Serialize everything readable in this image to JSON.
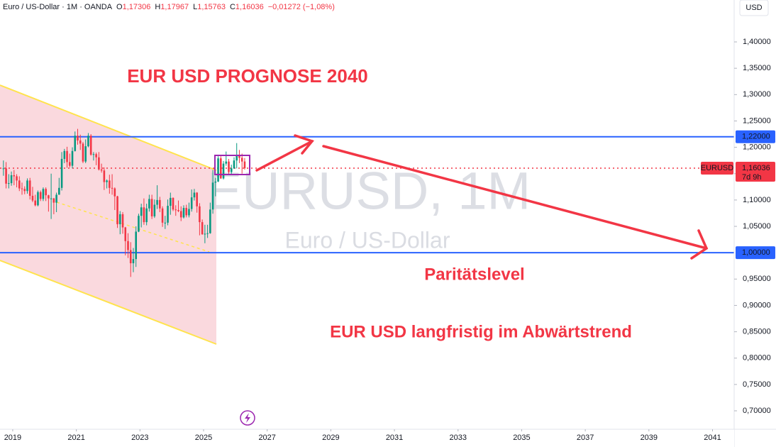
{
  "header": {
    "symbol": "Euro / US-Dollar · 1M · OANDA",
    "ohlc": [
      {
        "key": "O",
        "value": "1,17306"
      },
      {
        "key": "H",
        "value": "1,17967"
      },
      {
        "key": "L",
        "value": "1,15763"
      },
      {
        "key": "C",
        "value": "1,16036"
      }
    ],
    "change": "−0,01272 (−1,08%)",
    "currency": "USD"
  },
  "chart_data": {
    "type": "candlestick",
    "title": "EUR USD PROGNOSE 2040",
    "watermark": "EURUSD, 1M",
    "watermark_subtitle": "Euro / US-Dollar",
    "annotations": [
      "Paritätslevel",
      "EUR USD langfristig im Abwärtstrend"
    ],
    "up_color": "#089981",
    "down_color": "#f23645",
    "x": [
      "2018-09",
      "2018-10",
      "2018-11",
      "2018-12",
      "2019-01",
      "2019-02",
      "2019-03",
      "2019-04",
      "2019-05",
      "2019-06",
      "2019-07",
      "2019-08",
      "2019-09",
      "2019-10",
      "2019-11",
      "2019-12",
      "2020-01",
      "2020-02",
      "2020-03",
      "2020-04",
      "2020-05",
      "2020-06",
      "2020-07",
      "2020-08",
      "2020-09",
      "2020-10",
      "2020-11",
      "2020-12",
      "2021-01",
      "2021-02",
      "2021-03",
      "2021-04",
      "2021-05",
      "2021-06",
      "2021-07",
      "2021-08",
      "2021-09",
      "2021-10",
      "2021-11",
      "2021-12",
      "2022-01",
      "2022-02",
      "2022-03",
      "2022-04",
      "2022-05",
      "2022-06",
      "2022-07",
      "2022-08",
      "2022-09",
      "2022-10",
      "2022-11",
      "2022-12",
      "2023-01",
      "2023-02",
      "2023-03",
      "2023-04",
      "2023-05",
      "2023-06",
      "2023-07",
      "2023-08",
      "2023-09",
      "2023-10",
      "2023-11",
      "2023-12",
      "2024-01",
      "2024-02",
      "2024-03",
      "2024-04",
      "2024-05",
      "2024-06",
      "2024-07",
      "2024-08",
      "2024-09",
      "2024-10",
      "2024-11",
      "2024-12",
      "2025-01",
      "2025-02",
      "2025-03",
      "2025-04",
      "2025-05",
      "2025-06",
      "2025-07",
      "2025-08",
      "2025-09",
      "2025-10",
      "2025-11",
      "2025-12",
      "2026-01",
      "2026-02",
      "2026-03",
      "2026-04"
    ],
    "candles": [
      [
        1.16,
        1.175,
        1.146,
        1.16
      ],
      [
        1.16,
        1.172,
        1.122,
        1.131
      ],
      [
        1.131,
        1.149,
        1.122,
        1.132
      ],
      [
        1.132,
        1.154,
        1.127,
        1.147
      ],
      [
        1.147,
        1.157,
        1.128,
        1.145
      ],
      [
        1.145,
        1.149,
        1.124,
        1.137
      ],
      [
        1.137,
        1.145,
        1.117,
        1.122
      ],
      [
        1.122,
        1.133,
        1.11,
        1.121
      ],
      [
        1.121,
        1.126,
        1.111,
        1.117
      ],
      [
        1.117,
        1.141,
        1.112,
        1.137
      ],
      [
        1.137,
        1.142,
        1.101,
        1.108
      ],
      [
        1.108,
        1.125,
        1.096,
        1.099
      ],
      [
        1.099,
        1.11,
        1.088,
        1.09
      ],
      [
        1.09,
        1.118,
        1.088,
        1.115
      ],
      [
        1.115,
        1.118,
        1.098,
        1.102
      ],
      [
        1.102,
        1.124,
        1.098,
        1.121
      ],
      [
        1.121,
        1.124,
        1.098,
        1.109
      ],
      [
        1.109,
        1.11,
        1.078,
        1.103
      ],
      [
        1.103,
        1.15,
        1.064,
        1.103
      ],
      [
        1.103,
        1.104,
        1.073,
        1.095
      ],
      [
        1.095,
        1.114,
        1.077,
        1.11
      ],
      [
        1.11,
        1.142,
        1.11,
        1.123
      ],
      [
        1.123,
        1.191,
        1.118,
        1.178
      ],
      [
        1.178,
        1.197,
        1.17,
        1.193
      ],
      [
        1.193,
        1.201,
        1.161,
        1.172
      ],
      [
        1.172,
        1.188,
        1.162,
        1.165
      ],
      [
        1.165,
        1.2,
        1.16,
        1.193
      ],
      [
        1.193,
        1.23,
        1.192,
        1.222
      ],
      [
        1.222,
        1.235,
        1.205,
        1.213
      ],
      [
        1.213,
        1.224,
        1.195,
        1.207
      ],
      [
        1.207,
        1.21,
        1.17,
        1.173
      ],
      [
        1.173,
        1.215,
        1.17,
        1.202
      ],
      [
        1.202,
        1.227,
        1.2,
        1.222
      ],
      [
        1.222,
        1.225,
        1.184,
        1.186
      ],
      [
        1.186,
        1.191,
        1.175,
        1.187
      ],
      [
        1.187,
        1.19,
        1.166,
        1.181
      ],
      [
        1.181,
        1.191,
        1.156,
        1.158
      ],
      [
        1.158,
        1.169,
        1.152,
        1.156
      ],
      [
        1.156,
        1.162,
        1.119,
        1.134
      ],
      [
        1.134,
        1.139,
        1.122,
        1.137
      ],
      [
        1.137,
        1.148,
        1.112,
        1.123
      ],
      [
        1.123,
        1.149,
        1.11,
        1.122
      ],
      [
        1.122,
        1.124,
        1.081,
        1.107
      ],
      [
        1.107,
        1.108,
        1.047,
        1.054
      ],
      [
        1.054,
        1.079,
        1.035,
        1.073
      ],
      [
        1.073,
        1.077,
        1.036,
        1.048
      ],
      [
        1.048,
        1.049,
        0.995,
        1.022
      ],
      [
        1.022,
        1.037,
        0.99,
        1.005
      ],
      [
        1.005,
        1.02,
        0.954,
        0.98
      ],
      [
        0.98,
        1.009,
        0.963,
        0.988
      ],
      [
        0.988,
        1.05,
        0.973,
        1.04
      ],
      [
        1.04,
        1.074,
        1.039,
        1.07
      ],
      [
        1.07,
        1.093,
        1.048,
        1.086
      ],
      [
        1.086,
        1.103,
        1.053,
        1.058
      ],
      [
        1.058,
        1.093,
        1.052,
        1.084
      ],
      [
        1.084,
        1.11,
        1.078,
        1.102
      ],
      [
        1.102,
        1.11,
        1.064,
        1.069
      ],
      [
        1.069,
        1.101,
        1.066,
        1.091
      ],
      [
        1.091,
        1.128,
        1.083,
        1.1
      ],
      [
        1.1,
        1.106,
        1.077,
        1.084
      ],
      [
        1.084,
        1.088,
        1.049,
        1.057
      ],
      [
        1.057,
        1.07,
        1.045,
        1.057
      ],
      [
        1.057,
        1.101,
        1.052,
        1.089
      ],
      [
        1.089,
        1.114,
        1.072,
        1.104
      ],
      [
        1.104,
        1.105,
        1.079,
        1.082
      ],
      [
        1.082,
        1.09,
        1.07,
        1.081
      ],
      [
        1.081,
        1.099,
        1.077,
        1.079
      ],
      [
        1.079,
        1.088,
        1.06,
        1.067
      ],
      [
        1.067,
        1.09,
        1.065,
        1.085
      ],
      [
        1.085,
        1.091,
        1.067,
        1.071
      ],
      [
        1.071,
        1.095,
        1.067,
        1.083
      ],
      [
        1.083,
        1.12,
        1.078,
        1.105
      ],
      [
        1.105,
        1.121,
        1.099,
        1.114
      ],
      [
        1.114,
        1.115,
        1.076,
        1.088
      ],
      [
        1.088,
        1.094,
        1.033,
        1.058
      ],
      [
        1.058,
        1.063,
        1.034,
        1.035
      ],
      [
        1.035,
        1.053,
        1.018,
        1.036
      ],
      [
        1.036,
        1.053,
        1.028,
        1.037
      ],
      [
        1.037,
        1.095,
        1.036,
        1.082
      ],
      [
        1.082,
        1.157,
        1.074,
        1.133
      ],
      [
        1.133,
        1.142,
        1.107,
        1.135
      ],
      [
        1.135,
        1.183,
        1.134,
        1.179
      ],
      [
        1.179,
        1.183,
        1.14,
        1.141
      ],
      [
        1.141,
        1.174,
        1.139,
        1.169
      ],
      [
        1.169,
        1.192,
        1.165,
        1.173
      ],
      [
        1.173,
        1.178,
        1.147,
        1.153
      ],
      [
        1.153,
        1.167,
        1.149,
        1.16
      ],
      [
        1.16,
        1.181,
        1.159,
        1.175
      ],
      [
        1.175,
        1.208,
        1.16,
        1.185
      ],
      [
        1.185,
        1.195,
        1.17,
        1.18
      ],
      [
        1.18,
        1.188,
        1.15,
        1.173
      ],
      [
        1.17306,
        1.17967,
        1.15763,
        1.16036
      ]
    ],
    "xlim": [
      2018.6,
      2041.68
    ],
    "xticks": [
      2019,
      2021,
      2023,
      2025,
      2027,
      2029,
      2031,
      2033,
      2035,
      2037,
      2039,
      2041
    ],
    "ylim": [
      0.665,
      1.4795
    ],
    "yticks": [
      {
        "value": 0.7,
        "label": "0,70000"
      },
      {
        "value": 0.75,
        "label": "0,75000"
      },
      {
        "value": 0.8,
        "label": "0,80000"
      },
      {
        "value": 0.85,
        "label": "0,85000"
      },
      {
        "value": 0.9,
        "label": "0,90000"
      },
      {
        "value": 0.95,
        "label": "0,95000"
      },
      {
        "value": 1.05,
        "label": "1,05000"
      },
      {
        "value": 1.1,
        "label": "1,10000"
      },
      {
        "value": 1.15,
        "label": "1,15000"
      },
      {
        "value": 1.2,
        "label": "1,20000"
      },
      {
        "value": 1.25,
        "label": "1,25000"
      },
      {
        "value": 1.3,
        "label": "1,30000"
      },
      {
        "value": 1.35,
        "label": "1,35000"
      },
      {
        "value": 1.4,
        "label": "1,40000"
      }
    ],
    "levels": [
      {
        "value": 1.22,
        "label": "1,22000",
        "color": "#2962ff"
      },
      {
        "value": 1.0,
        "label": "1,00000",
        "color": "#2962ff"
      }
    ],
    "price_line": {
      "value": 1.16036,
      "label": "1,16036",
      "symbol": "EURUSD",
      "countdown": "7d 9h",
      "color": "#f23645"
    }
  }
}
